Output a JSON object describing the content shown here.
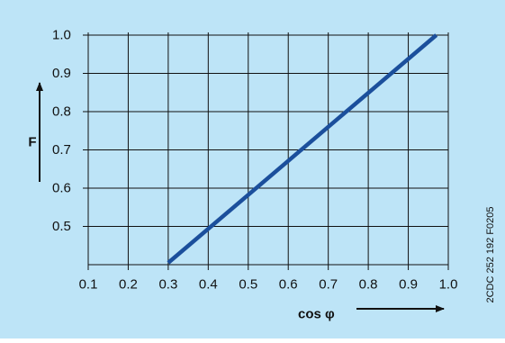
{
  "chart_data": {
    "type": "line",
    "x": [
      0.3,
      0.97
    ],
    "y": [
      0.405,
      1.0
    ],
    "xlim": [
      0.1,
      1.0
    ],
    "ylim": [
      0.4,
      1.0
    ],
    "x_ticks": [
      "0.1",
      "0.2",
      "0.3",
      "0.4",
      "0.5",
      "0.6",
      "0.7",
      "0.8",
      "0.9",
      "1.0"
    ],
    "y_ticks": [
      "0.5",
      "0.6",
      "0.7",
      "0.8",
      "0.9",
      "1.0"
    ],
    "xlabel": "cos φ",
    "ylabel": "F",
    "grid": true,
    "code": "2CDC 252 192 F0205",
    "colors": {
      "background": "#bde4f7",
      "line": "#1b4f9c",
      "grid": "#111111",
      "text": "#111111"
    }
  }
}
